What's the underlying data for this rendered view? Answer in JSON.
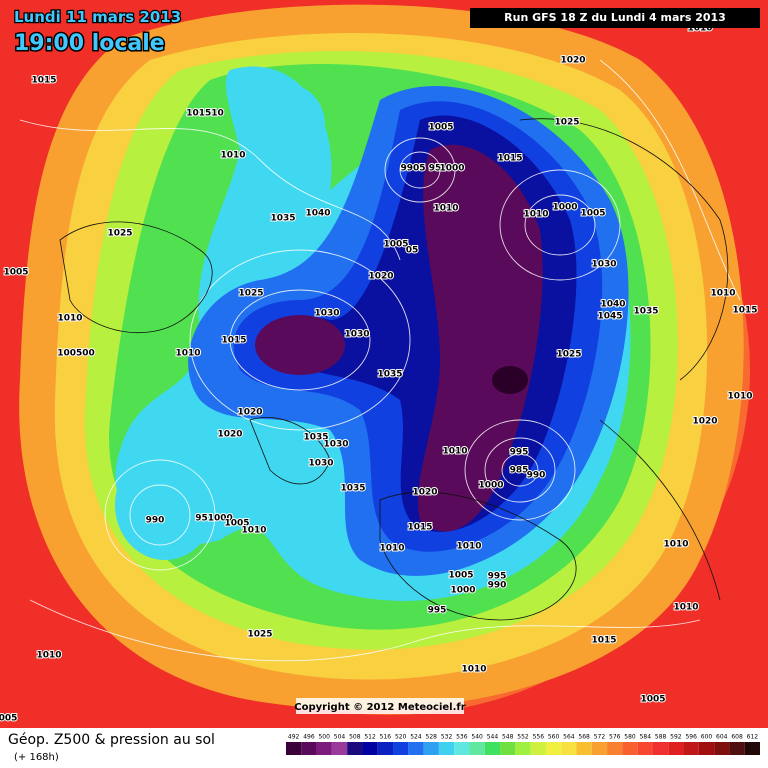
{
  "header": {
    "date": "Lundi 11 mars 2013",
    "time": "19:00 locale",
    "run": "Run GFS 18 Z du Lundi 4 mars 2013"
  },
  "copyright": "Copyright © 2012 Meteociel.fr",
  "footer": {
    "title": "Géop. Z500 & pression au sol",
    "lead": "(+ 168h)"
  },
  "pressure_labels": [
    "1015",
    "101510",
    "1010",
    "1025",
    "1005",
    "1010",
    "100500",
    "1010",
    "1015",
    "1025",
    "1030",
    "1030",
    "1035",
    "1020",
    "1020",
    "1035",
    "1030",
    "1030",
    "1035",
    "990",
    "951000",
    "1005",
    "1010",
    "1025",
    "1010",
    "005",
    "1020",
    "1025",
    "1005",
    "1015",
    "9905",
    "95",
    "1000",
    "1010",
    "1010",
    "1000",
    "1005",
    "1005",
    "05",
    "1020",
    "1030",
    "1040",
    "1045",
    "1035",
    "1010",
    "1015",
    "1025",
    "1010",
    "1020",
    "1010",
    "995",
    "985",
    "990",
    "1000",
    "1020",
    "1015",
    "1010",
    "1010",
    "1010",
    "1005",
    "995",
    "990",
    "1000",
    "995",
    "1010",
    "1015",
    "1010",
    "1005",
    "1010",
    "1035",
    "1040"
  ],
  "legend": {
    "values": [
      492,
      496,
      500,
      504,
      508,
      512,
      516,
      520,
      524,
      528,
      532,
      536,
      540,
      544,
      548,
      552,
      556,
      560,
      564,
      568,
      572,
      576,
      580,
      584,
      588,
      592,
      596,
      600,
      604,
      608,
      612
    ],
    "colors": [
      "#3a0038",
      "#5a0a5a",
      "#7d1a7d",
      "#9b3a9b",
      "#1a0a7d",
      "#0000a0",
      "#0a20c0",
      "#1040e0",
      "#2070f0",
      "#30a0f0",
      "#40d0f0",
      "#60e8e0",
      "#60e8a0",
      "#40e060",
      "#70e040",
      "#a0f040",
      "#d0f040",
      "#f0f040",
      "#f8e040",
      "#f8c030",
      "#f8a030",
      "#f88030",
      "#f86030",
      "#f84830",
      "#f03030",
      "#e02020",
      "#c01818",
      "#a01010",
      "#801010",
      "#501010",
      "#200808"
    ]
  }
}
